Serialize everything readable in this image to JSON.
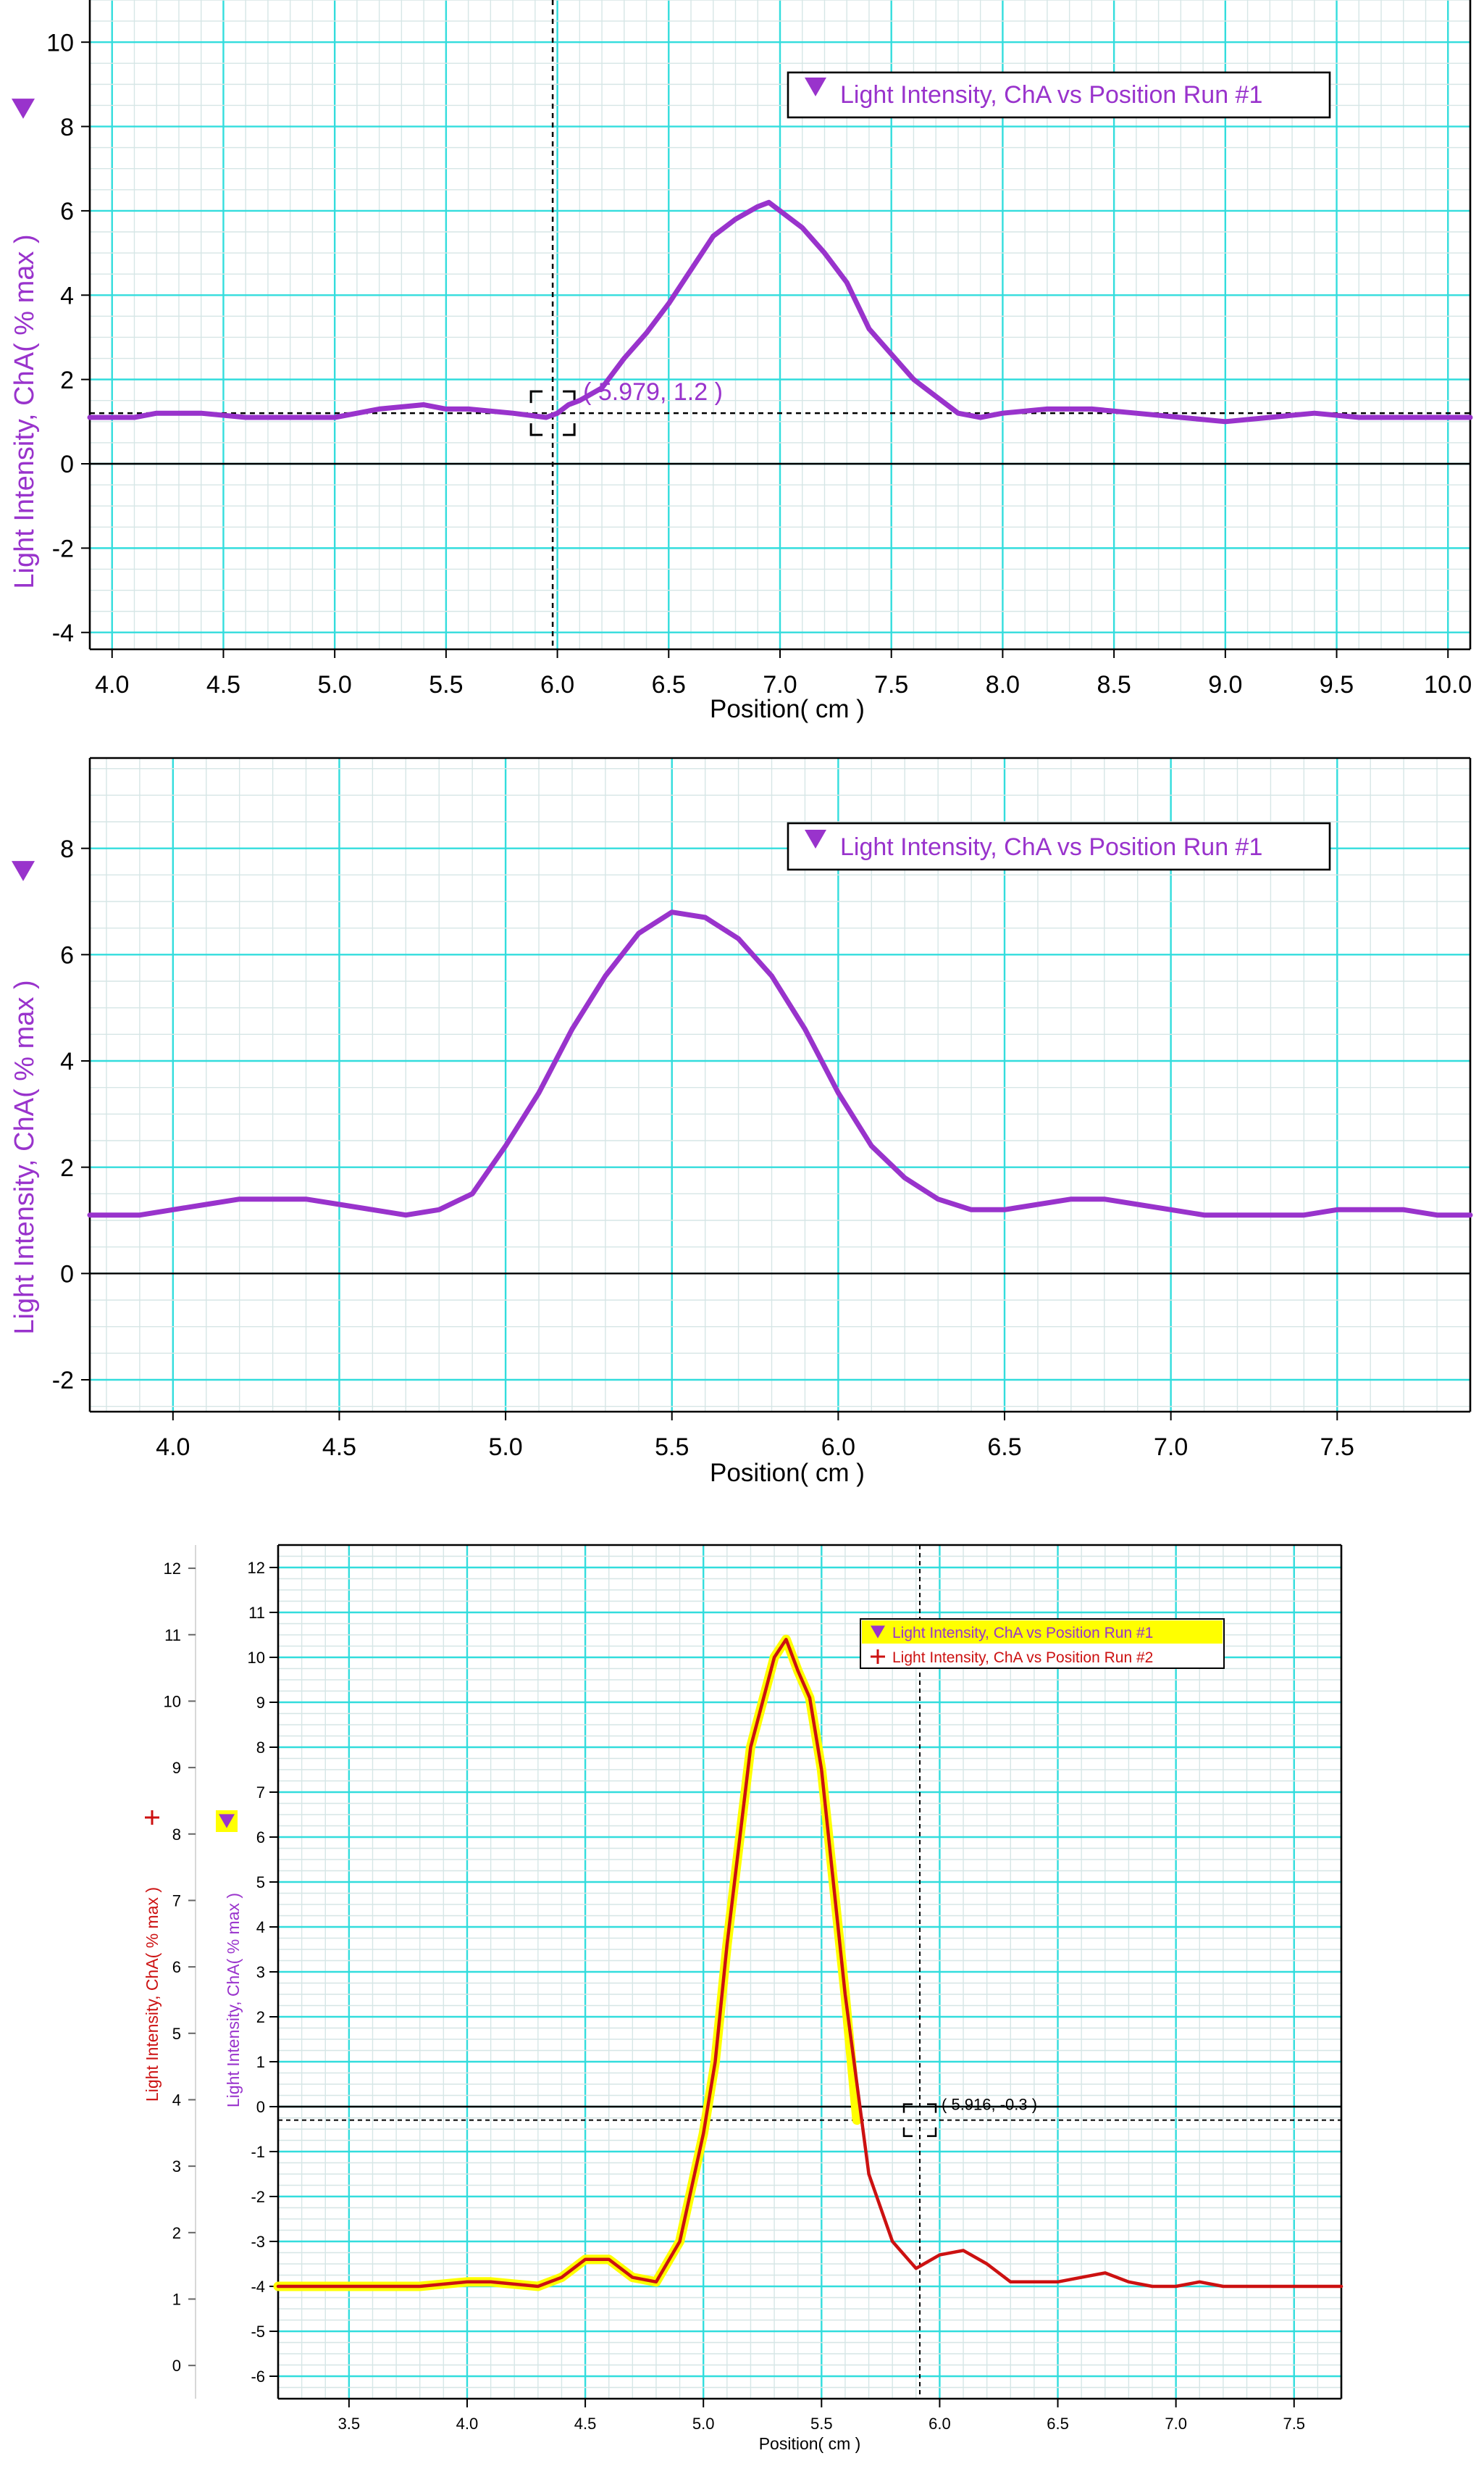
{
  "colors": {
    "run1": "#9933cc",
    "run2": "#cc1111",
    "highlight": "#ffff00",
    "grid_major": "#33dddd",
    "grid_minor": "#d6e6e6",
    "axis": "#000000"
  },
  "chart_data": [
    {
      "type": "line",
      "xlabel": "Position( cm )",
      "ylabel": "Light Intensity, ChA( % max )",
      "xlim": [
        3.9,
        10.1
      ],
      "ylim": [
        -4.4,
        11.0
      ],
      "xticks": [
        "4.0",
        "4.5",
        "5.0",
        "5.5",
        "6.0",
        "6.5",
        "7.0",
        "7.5",
        "8.0",
        "8.5",
        "9.0",
        "9.5",
        "10.0"
      ],
      "yticks": [
        "10",
        "8",
        "6",
        "4",
        "2",
        "0",
        "-2",
        "-4"
      ],
      "grid": true,
      "legend_position": "top-right",
      "series": [
        {
          "name": "Light Intensity, ChA vs Position Run #1",
          "x": [
            3.9,
            4.0,
            4.1,
            4.2,
            4.4,
            4.6,
            4.8,
            5.0,
            5.2,
            5.4,
            5.5,
            5.6,
            5.8,
            5.95,
            6.0,
            6.05,
            6.1,
            6.2,
            6.3,
            6.4,
            6.5,
            6.6,
            6.7,
            6.8,
            6.9,
            6.95,
            7.0,
            7.1,
            7.2,
            7.3,
            7.4,
            7.5,
            7.6,
            7.7,
            7.8,
            7.9,
            8.0,
            8.2,
            8.4,
            8.6,
            8.8,
            9.0,
            9.2,
            9.4,
            9.6,
            9.8,
            10.0,
            10.1
          ],
          "y": [
            1.1,
            1.1,
            1.1,
            1.2,
            1.2,
            1.1,
            1.1,
            1.1,
            1.3,
            1.4,
            1.3,
            1.3,
            1.2,
            1.1,
            1.2,
            1.4,
            1.5,
            1.8,
            2.5,
            3.1,
            3.8,
            4.6,
            5.4,
            5.8,
            6.1,
            6.2,
            6.0,
            5.6,
            5.0,
            4.3,
            3.2,
            2.6,
            2.0,
            1.6,
            1.2,
            1.1,
            1.2,
            1.3,
            1.3,
            1.2,
            1.1,
            1.0,
            1.1,
            1.2,
            1.1,
            1.1,
            1.1,
            1.1
          ]
        }
      ],
      "cursor": {
        "x": 5.979,
        "y": 1.2,
        "label": "( 5.979, 1.2 )"
      }
    },
    {
      "type": "line",
      "xlabel": "Position( cm )",
      "ylabel": "Light Intensity, ChA( % max )",
      "xlim": [
        3.75,
        7.9
      ],
      "ylim": [
        -2.6,
        9.7
      ],
      "xticks": [
        "4.0",
        "4.5",
        "5.0",
        "5.5",
        "6.0",
        "6.5",
        "7.0",
        "7.5"
      ],
      "yticks": [
        "8",
        "6",
        "4",
        "2",
        "0",
        "-2"
      ],
      "grid": true,
      "legend_position": "top-right",
      "series": [
        {
          "name": "Light Intensity, ChA vs Position Run #1",
          "x": [
            3.75,
            3.9,
            4.0,
            4.1,
            4.2,
            4.3,
            4.4,
            4.5,
            4.6,
            4.7,
            4.8,
            4.9,
            5.0,
            5.1,
            5.2,
            5.3,
            5.4,
            5.5,
            5.6,
            5.7,
            5.8,
            5.9,
            6.0,
            6.1,
            6.2,
            6.3,
            6.4,
            6.5,
            6.6,
            6.7,
            6.8,
            6.9,
            7.0,
            7.1,
            7.2,
            7.3,
            7.4,
            7.5,
            7.6,
            7.7,
            7.8,
            7.9
          ],
          "y": [
            1.1,
            1.1,
            1.2,
            1.3,
            1.4,
            1.4,
            1.4,
            1.3,
            1.2,
            1.1,
            1.2,
            1.5,
            2.4,
            3.4,
            4.6,
            5.6,
            6.4,
            6.8,
            6.7,
            6.3,
            5.6,
            4.6,
            3.4,
            2.4,
            1.8,
            1.4,
            1.2,
            1.2,
            1.3,
            1.4,
            1.4,
            1.3,
            1.2,
            1.1,
            1.1,
            1.1,
            1.1,
            1.2,
            1.2,
            1.2,
            1.1,
            1.1
          ]
        }
      ]
    },
    {
      "type": "line",
      "xlabel": "Position( cm )",
      "ylabel_left": "Light Intensity, ChA( % max )",
      "ylabel_right": "Light Intensity, ChA( % max )",
      "xlim": [
        3.2,
        7.7
      ],
      "ylim": [
        -6.5,
        12.5
      ],
      "ylim_outer": [
        -0.5,
        12.35
      ],
      "xticks": [
        "3.5",
        "4.0",
        "4.5",
        "5.0",
        "5.5",
        "6.0",
        "6.5",
        "7.0",
        "7.5"
      ],
      "yticks_inner": [
        "12",
        "11",
        "10",
        "9",
        "8",
        "7",
        "6",
        "5",
        "4",
        "3",
        "2",
        "1",
        "0",
        "-1",
        "-2",
        "-3",
        "-4",
        "-5",
        "-6"
      ],
      "yticks_outer": [
        "12",
        "11",
        "10",
        "9",
        "8",
        "7",
        "6",
        "5",
        "4",
        "3",
        "2",
        "1",
        "0"
      ],
      "grid": true,
      "legend_position": "top-right",
      "series": [
        {
          "name": "Light Intensity, ChA vs Position Run #1",
          "x": [
            3.2,
            3.4,
            3.6,
            3.8,
            4.0,
            4.1,
            4.3,
            4.4,
            4.5,
            4.6,
            4.7,
            4.8,
            4.9,
            5.0,
            5.05,
            5.1,
            5.2,
            5.3,
            5.35,
            5.4,
            5.45,
            5.5,
            5.55,
            5.6,
            5.65
          ],
          "y": [
            -4.0,
            -4.0,
            -4.0,
            -4.0,
            -3.9,
            -3.9,
            -4.0,
            -3.8,
            -3.4,
            -3.4,
            -3.8,
            -3.9,
            -3.0,
            -0.6,
            1.0,
            3.6,
            8.0,
            10.0,
            10.4,
            9.7,
            9.1,
            7.5,
            5.0,
            2.5,
            -0.3
          ]
        },
        {
          "name": "Light Intensity, ChA vs Position Run #2",
          "x": [
            3.2,
            3.4,
            3.6,
            3.8,
            4.0,
            4.1,
            4.3,
            4.4,
            4.5,
            4.6,
            4.7,
            4.8,
            4.9,
            5.0,
            5.05,
            5.1,
            5.2,
            5.3,
            5.35,
            5.4,
            5.45,
            5.5,
            5.55,
            5.6,
            5.7,
            5.8,
            5.9,
            6.0,
            6.1,
            6.2,
            6.3,
            6.4,
            6.5,
            6.6,
            6.7,
            6.8,
            6.9,
            7.0,
            7.1,
            7.2,
            7.3,
            7.4,
            7.5,
            7.6,
            7.7
          ],
          "y": [
            -4.0,
            -4.0,
            -4.0,
            -4.0,
            -3.9,
            -3.9,
            -4.0,
            -3.8,
            -3.4,
            -3.4,
            -3.8,
            -3.9,
            -3.0,
            -0.6,
            1.0,
            3.6,
            8.0,
            10.0,
            10.4,
            9.7,
            9.1,
            7.5,
            5.0,
            2.5,
            -1.5,
            -3.0,
            -3.6,
            -3.3,
            -3.2,
            -3.5,
            -3.9,
            -3.9,
            -3.9,
            -3.8,
            -3.7,
            -3.9,
            -4.0,
            -4.0,
            -3.9,
            -4.0,
            -4.0,
            -4.0,
            -4.0,
            -4.0,
            -4.0
          ]
        }
      ],
      "cursor": {
        "x": 5.916,
        "y": -0.3,
        "label": "( 5.916, -0.3 )"
      }
    }
  ]
}
